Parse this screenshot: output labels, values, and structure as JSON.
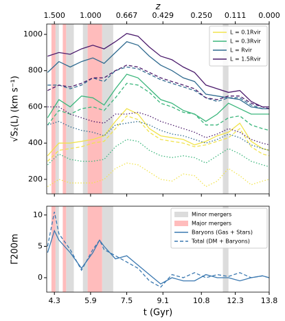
{
  "chart_data": [
    {
      "type": "line",
      "x_top_label": "z",
      "ylabel": "√S₂(L) (km s⁻¹)",
      "xlim": [
        3.96,
        13.8
      ],
      "xticks": [
        4.3,
        5.9,
        7.5,
        9.1,
        10.8,
        12.3,
        13.8
      ],
      "x2ticks": [
        {
          "value": 4.3,
          "label": "1.500"
        },
        {
          "value": 5.9,
          "label": "1.000"
        },
        {
          "value": 7.5,
          "label": "0.667"
        },
        {
          "value": 9.1,
          "label": "0.429"
        },
        {
          "value": 10.8,
          "label": "0.250"
        },
        {
          "value": 12.3,
          "label": "0.111"
        },
        {
          "value": 13.8,
          "label": "0.000"
        }
      ],
      "ylim": [
        120,
        1057
      ],
      "yticks": [
        200,
        400,
        600,
        800,
        1000
      ],
      "legend": "upper right",
      "x": [
        4.0,
        4.5,
        5.0,
        5.5,
        6.0,
        6.5,
        7.0,
        7.5,
        8.0,
        8.5,
        9.0,
        9.5,
        10.0,
        10.5,
        11.0,
        11.5,
        12.0,
        12.5,
        13.0,
        13.5,
        13.8
      ],
      "series": [
        {
          "name": "L = 0.1Rvir",
          "color": "#f1e34c",
          "dash": "solid",
          "values": [
            330,
            400,
            400,
            410,
            420,
            440,
            520,
            590,
            560,
            480,
            440,
            430,
            420,
            390,
            410,
            440,
            460,
            510,
            410,
            370,
            360
          ]
        },
        {
          "name": "L = 0.3Rvir",
          "color": "#3bb67c",
          "dash": "solid",
          "values": [
            540,
            640,
            600,
            660,
            650,
            610,
            700,
            780,
            760,
            700,
            640,
            620,
            580,
            560,
            520,
            560,
            620,
            590,
            560,
            560,
            560
          ]
        },
        {
          "name": "L = Rvir",
          "color": "#2f6a8f",
          "dash": "solid",
          "values": [
            790,
            850,
            820,
            850,
            870,
            840,
            900,
            960,
            940,
            880,
            830,
            800,
            760,
            740,
            670,
            660,
            650,
            640,
            600,
            590,
            590
          ]
        },
        {
          "name": "L = 1.5Rvir",
          "color": "#4a1a6b",
          "dash": "solid",
          "values": [
            880,
            900,
            890,
            920,
            940,
            920,
            960,
            1005,
            990,
            930,
            880,
            860,
            820,
            790,
            720,
            700,
            680,
            690,
            630,
            600,
            600
          ]
        },
        {
          "color": "#f1e34c",
          "dash": "dashed",
          "values": [
            300,
            360,
            370,
            380,
            400,
            410,
            480,
            550,
            530,
            460,
            420,
            410,
            400,
            380,
            390,
            410,
            430,
            480,
            380,
            340,
            330
          ]
        },
        {
          "color": "#3bb67c",
          "dash": "dashed",
          "values": [
            500,
            580,
            560,
            590,
            600,
            580,
            650,
            730,
            720,
            680,
            620,
            600,
            570,
            560,
            500,
            500,
            540,
            550,
            500,
            480,
            470
          ]
        },
        {
          "color": "#2f6a8f",
          "dash": "dashed",
          "values": [
            720,
            720,
            700,
            720,
            760,
            740,
            800,
            820,
            810,
            780,
            750,
            730,
            710,
            690,
            650,
            630,
            650,
            650,
            610,
            590,
            590
          ]
        },
        {
          "color": "#4a1a6b",
          "dash": "dashed",
          "values": [
            690,
            720,
            710,
            730,
            760,
            760,
            800,
            830,
            820,
            790,
            760,
            740,
            720,
            700,
            650,
            640,
            660,
            660,
            620,
            600,
            590
          ]
        },
        {
          "color": "#f1e34c",
          "dash": "dotted",
          "values": [
            160,
            200,
            180,
            180,
            180,
            200,
            260,
            290,
            280,
            240,
            200,
            190,
            230,
            220,
            160,
            190,
            260,
            220,
            170,
            190,
            200
          ]
        },
        {
          "color": "#3bb67c",
          "dash": "dotted",
          "values": [
            280,
            340,
            310,
            300,
            300,
            310,
            380,
            420,
            410,
            360,
            330,
            320,
            330,
            320,
            290,
            330,
            370,
            340,
            300,
            280,
            270
          ]
        },
        {
          "color": "#2f6a8f",
          "dash": "dotted",
          "values": [
            500,
            520,
            490,
            470,
            460,
            440,
            500,
            510,
            520,
            500,
            470,
            450,
            440,
            420,
            400,
            420,
            450,
            430,
            390,
            370,
            360
          ]
        },
        {
          "color": "#4a1a6b",
          "dash": "dotted",
          "values": [
            600,
            600,
            560,
            540,
            520,
            510,
            560,
            560,
            570,
            550,
            520,
            500,
            480,
            460,
            430,
            450,
            480,
            460,
            420,
            400,
            390
          ]
        }
      ]
    },
    {
      "type": "line",
      "xlabel": "t (Gyr)",
      "ylabel": "Γ200m",
      "xlim": [
        3.96,
        13.8
      ],
      "xticks": [
        4.3,
        5.9,
        7.5,
        9.1,
        10.8,
        12.3,
        13.8
      ],
      "ylim": [
        -2.3,
        11.4
      ],
      "yticks": [
        0,
        5,
        10
      ],
      "legend": "upper right",
      "mergers": [
        {
          "name": "Minor mergers",
          "color": "#dcdcdc",
          "spans": [
            [
              4.35,
              4.5
            ],
            [
              4.82,
              5.16
            ],
            [
              5.56,
              5.77
            ],
            [
              6.41,
              6.9
            ],
            [
              11.75,
              12.0
            ]
          ]
        },
        {
          "name": "Major mergers",
          "color": "#ffbcbc",
          "spans": [
            [
              4.17,
              4.35
            ],
            [
              4.67,
              4.82
            ],
            [
              5.77,
              6.41
            ]
          ]
        }
      ],
      "x": [
        4.0,
        4.3,
        4.5,
        5.0,
        5.5,
        6.0,
        6.3,
        6.5,
        7.0,
        7.5,
        8.0,
        8.5,
        9.0,
        9.5,
        10.0,
        10.5,
        11.0,
        11.5,
        12.0,
        12.5,
        13.0,
        13.5,
        13.8
      ],
      "series": [
        {
          "name": "Baryons (Gas + Stars)",
          "color": "#3a78b0",
          "dash": "solid",
          "values": [
            4,
            7.5,
            6,
            4,
            1.5,
            4,
            6,
            5,
            3,
            3.5,
            2,
            0.5,
            -1,
            0,
            -0.5,
            -0.5,
            0.5,
            0,
            0,
            -0.5,
            0,
            0.3,
            0
          ]
        },
        {
          "name": "Total (DM + Baryons)",
          "color": "#3a78b0",
          "dash": "dashed",
          "values": [
            5,
            10.5,
            7,
            4.5,
            1.2,
            4.5,
            6,
            4.5,
            3.5,
            2.5,
            1.5,
            -0.5,
            -1.5,
            0.5,
            0,
            0.8,
            0,
            0.5,
            0.2,
            0.8,
            0,
            0.3,
            0
          ]
        }
      ]
    }
  ]
}
